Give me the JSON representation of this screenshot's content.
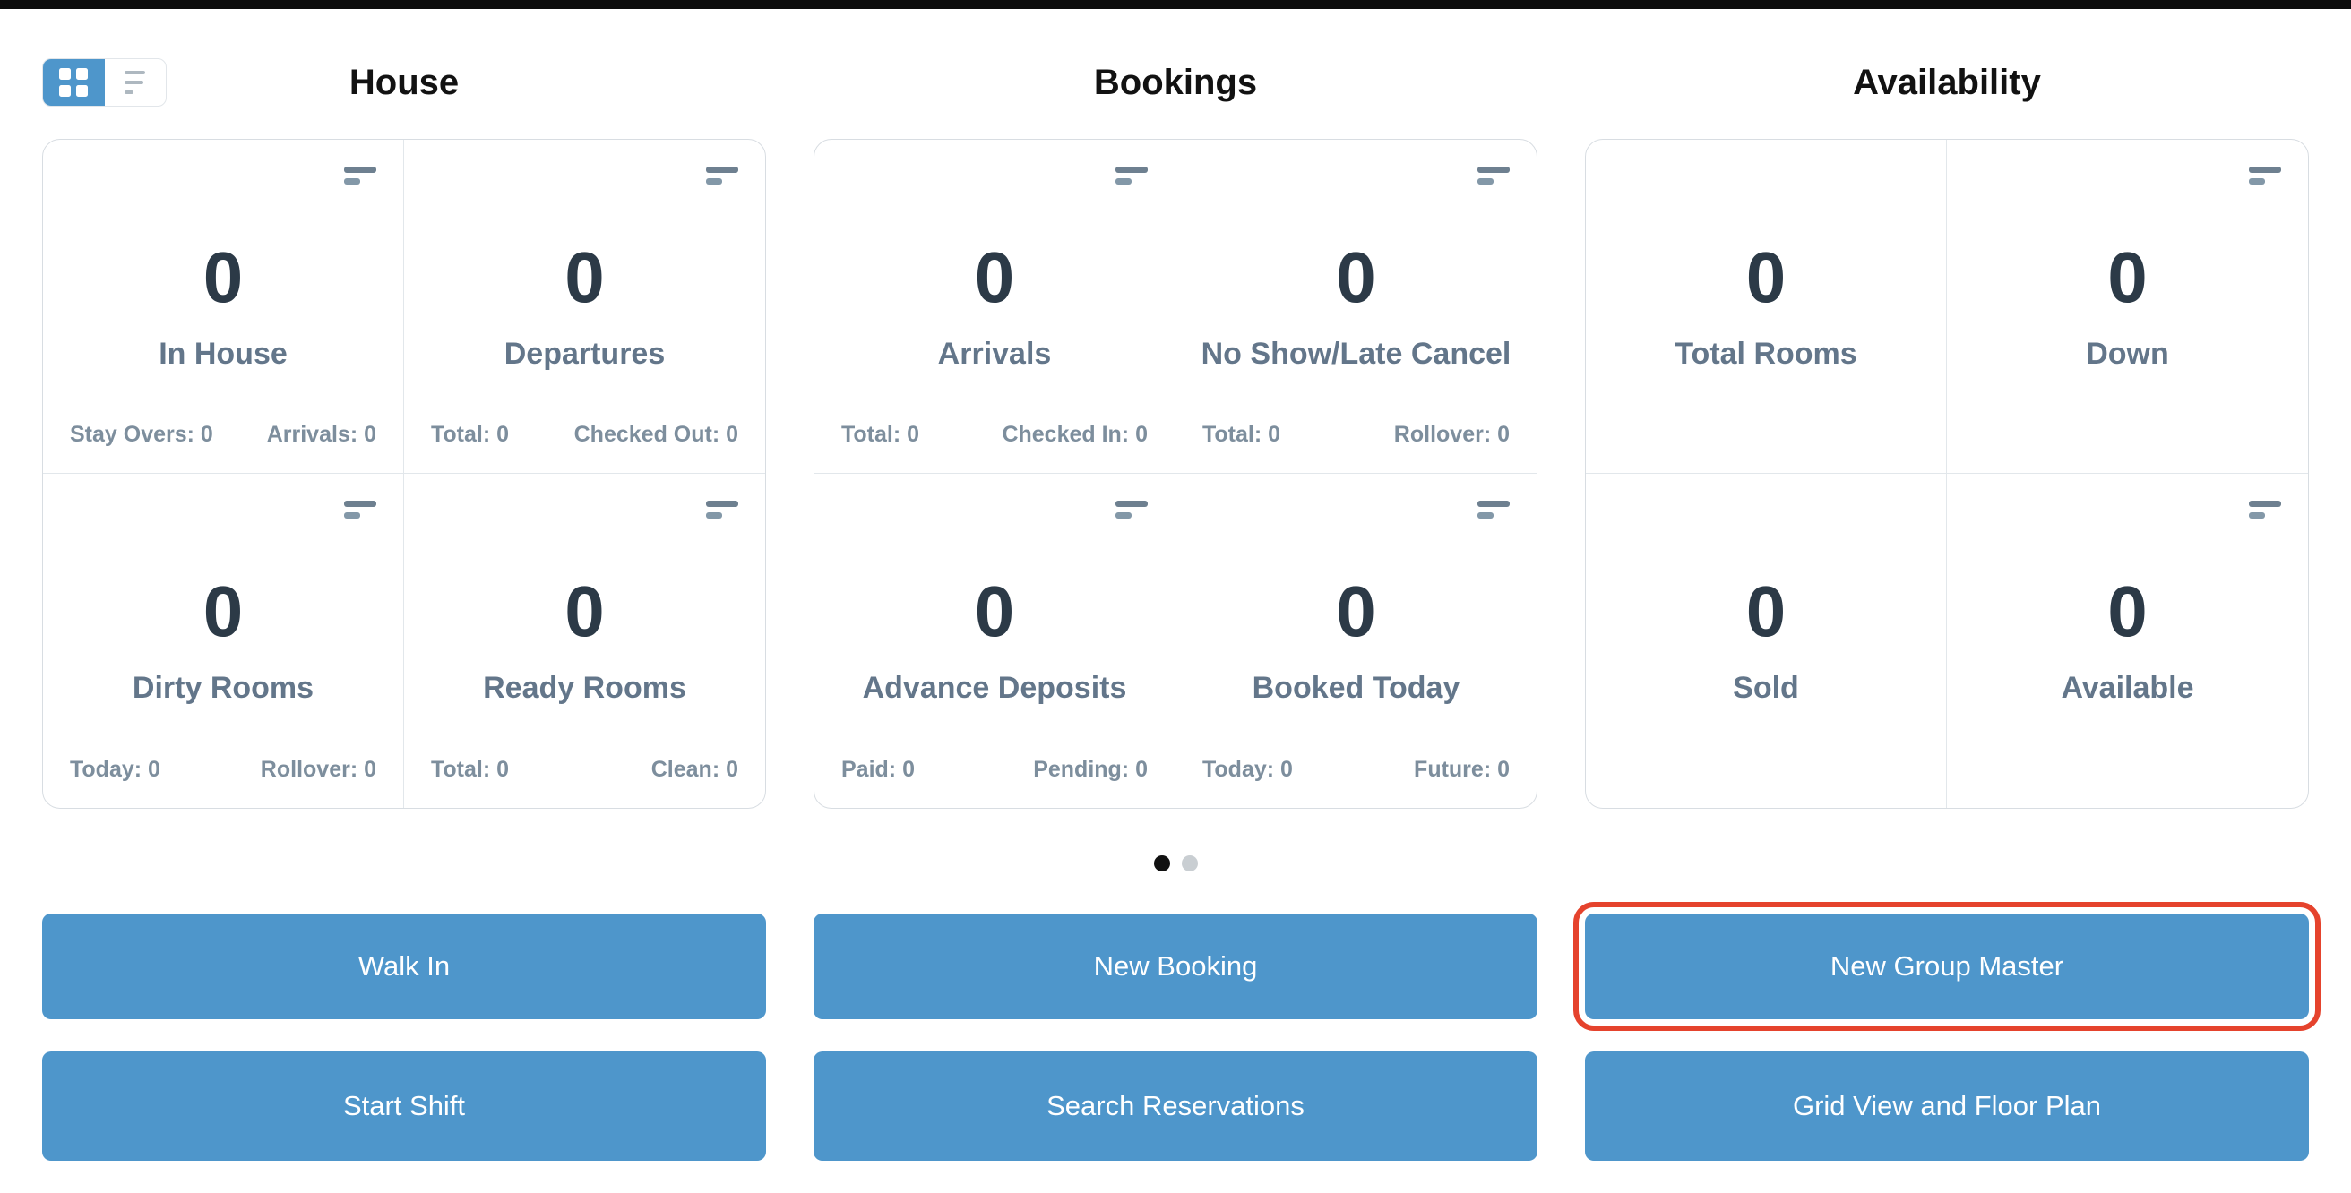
{
  "view_toggle": {
    "selected": "grid"
  },
  "sections": [
    {
      "title": "House",
      "cards": [
        {
          "value": "0",
          "label": "In House",
          "footer_left": "Stay Overs: 0",
          "footer_right": "Arrivals: 0"
        },
        {
          "value": "0",
          "label": "Departures",
          "footer_left": "Total: 0",
          "footer_right": "Checked Out: 0"
        },
        {
          "value": "0",
          "label": "Dirty Rooms",
          "footer_left": "Today: 0",
          "footer_right": "Rollover: 0"
        },
        {
          "value": "0",
          "label": "Ready Rooms",
          "footer_left": "Total: 0",
          "footer_right": "Clean: 0"
        }
      ],
      "primary_button": "Walk In",
      "secondary_button": "Start Shift"
    },
    {
      "title": "Bookings",
      "cards": [
        {
          "value": "0",
          "label": "Arrivals",
          "footer_left": "Total: 0",
          "footer_right": "Checked In: 0"
        },
        {
          "value": "0",
          "label": "No Show/Late Cancel",
          "footer_left": "Total: 0",
          "footer_right": "Rollover: 0"
        },
        {
          "value": "0",
          "label": "Advance Deposits",
          "footer_left": "Paid: 0",
          "footer_right": "Pending: 0"
        },
        {
          "value": "0",
          "label": "Booked Today",
          "footer_left": "Today: 0",
          "footer_right": "Future: 0"
        }
      ],
      "primary_button": "New Booking",
      "secondary_button": "Search Reservations"
    },
    {
      "title": "Availability",
      "cards": [
        {
          "value": "0",
          "label": "Total Rooms"
        },
        {
          "value": "0",
          "label": "Down"
        },
        {
          "value": "0",
          "label": "Sold"
        },
        {
          "value": "0",
          "label": "Available"
        }
      ],
      "primary_button": "New Group Master",
      "primary_highlighted": true,
      "secondary_button": "Grid View and Floor Plan"
    }
  ],
  "pagination": {
    "count": 2,
    "active_index": 0
  },
  "colors": {
    "accent_blue": "#4e96cb",
    "highlight_red": "#e5432d",
    "stat_number": "#2c3a47",
    "stat_label": "#63768a",
    "stat_footer": "#7d8e9d",
    "top_bar": "#0c0c0c"
  }
}
